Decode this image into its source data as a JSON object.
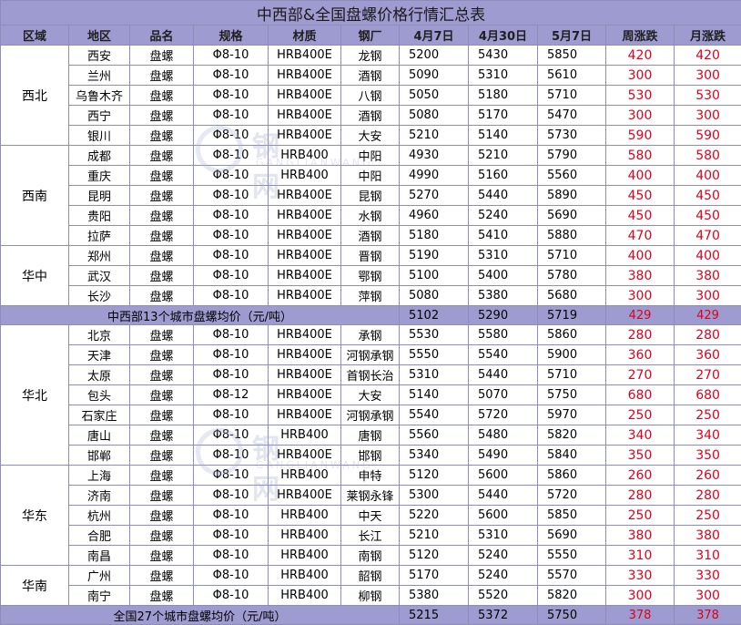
{
  "title": "中西部&全国盘螺价格行情汇总表",
  "headers": [
    "区域",
    "地区",
    "品名",
    "规格",
    "材质",
    "钢厂",
    "4月7日",
    "4月30日",
    "5月7日",
    "周涨跌",
    "月涨跌"
  ],
  "groups": [
    {
      "region": "西北",
      "rows": [
        [
          "西安",
          "盘螺",
          "Φ8-10",
          "HRB400E",
          "龙钢",
          "5200",
          "5430",
          "5850",
          "420",
          "420"
        ],
        [
          "兰州",
          "盘螺",
          "Φ8-10",
          "HRB400E",
          "酒钢",
          "5090",
          "5310",
          "5610",
          "300",
          "300"
        ],
        [
          "乌鲁木齐",
          "盘螺",
          "Φ8-10",
          "HRB400E",
          "八钢",
          "5050",
          "5180",
          "5710",
          "530",
          "530"
        ],
        [
          "西宁",
          "盘螺",
          "Φ8-10",
          "HRB400E",
          "酒钢",
          "5080",
          "5170",
          "5470",
          "300",
          "300"
        ],
        [
          "银川",
          "盘螺",
          "Φ8-10",
          "HRB400E",
          "大安",
          "5210",
          "5140",
          "5730",
          "590",
          "590"
        ]
      ]
    },
    {
      "region": "西南",
      "rows": [
        [
          "成都",
          "盘螺",
          "Φ8-10",
          "HRB400",
          "中阳",
          "4930",
          "5210",
          "5790",
          "580",
          "580"
        ],
        [
          "重庆",
          "盘螺",
          "Φ8-10",
          "HRB400",
          "中阳",
          "4990",
          "5160",
          "5560",
          "400",
          "400"
        ],
        [
          "昆明",
          "盘螺",
          "Φ8-10",
          "HRB400E",
          "昆钢",
          "5270",
          "5440",
          "5890",
          "450",
          "450"
        ],
        [
          "贵阳",
          "盘螺",
          "Φ8-10",
          "HRB400E",
          "水钢",
          "4960",
          "5240",
          "5690",
          "450",
          "450"
        ],
        [
          "拉萨",
          "盘螺",
          "Φ8-10",
          "HRB400E",
          "酒钢",
          "5180",
          "5410",
          "5880",
          "470",
          "470"
        ]
      ]
    },
    {
      "region": "华中",
      "rows": [
        [
          "郑州",
          "盘螺",
          "Φ8-10",
          "HRB400E",
          "晋钢",
          "5190",
          "5310",
          "5710",
          "400",
          "400"
        ],
        [
          "武汉",
          "盘螺",
          "Φ8-10",
          "HRB400E",
          "鄂钢",
          "5100",
          "5400",
          "5780",
          "380",
          "380"
        ],
        [
          "长沙",
          "盘螺",
          "Φ8-10",
          "HRB400E",
          "萍钢",
          "5080",
          "5380",
          "5680",
          "300",
          "300"
        ]
      ]
    }
  ],
  "avg1": {
    "label": "中西部13个城市盘螺均价（元/吨）",
    "v1": "5102",
    "v2": "5290",
    "v3": "5719",
    "w": "429",
    "m": "429"
  },
  "groups2": [
    {
      "region": "华北",
      "rows": [
        [
          "北京",
          "盘螺",
          "Φ8-10",
          "HRB400E",
          "承钢",
          "5530",
          "5580",
          "5860",
          "280",
          "280"
        ],
        [
          "天津",
          "盘螺",
          "Φ8-10",
          "HRB400E",
          "河钢承钢",
          "5550",
          "5540",
          "5900",
          "360",
          "360"
        ],
        [
          "太原",
          "盘螺",
          "Φ8-10",
          "HRB400E",
          "首钢长治",
          "5310",
          "5440",
          "5710",
          "270",
          "270"
        ],
        [
          "包头",
          "盘螺",
          "Φ8-12",
          "HRB400E",
          "大安",
          "5140",
          "5070",
          "5750",
          "680",
          "680"
        ],
        [
          "石家庄",
          "盘螺",
          "Φ8-10",
          "HRB400E",
          "河钢承钢",
          "5540",
          "5720",
          "5970",
          "250",
          "250"
        ],
        [
          "唐山",
          "盘螺",
          "Φ8-10",
          "HRB400",
          "唐钢",
          "5560",
          "5480",
          "5820",
          "340",
          "340"
        ],
        [
          "邯郸",
          "盘螺",
          "Φ8-10",
          "HRB400E",
          "邯钢",
          "5340",
          "5490",
          "5840",
          "350",
          "350"
        ]
      ]
    },
    {
      "region": "华东",
      "rows": [
        [
          "上海",
          "盘螺",
          "Φ8-10",
          "HRB400",
          "申特",
          "5120",
          "5600",
          "5860",
          "260",
          "260"
        ],
        [
          "济南",
          "盘螺",
          "Φ8-10",
          "HRB400E",
          "莱钢永锋",
          "5300",
          "5440",
          "5720",
          "280",
          "280"
        ],
        [
          "杭州",
          "盘螺",
          "Φ8-10",
          "HRB400",
          "中天",
          "5220",
          "5600",
          "5850",
          "250",
          "250"
        ],
        [
          "合肥",
          "盘螺",
          "Φ8-10",
          "HRB400",
          "长江",
          "5210",
          "5310",
          "5690",
          "380",
          "380"
        ],
        [
          "南昌",
          "盘螺",
          "Φ8-10",
          "HRB400",
          "南钢",
          "5120",
          "5240",
          "5550",
          "310",
          "310"
        ]
      ]
    },
    {
      "region": "华南",
      "rows": [
        [
          "广州",
          "盘螺",
          "Φ8-10",
          "HRB400",
          "韶钢",
          "5170",
          "5240",
          "5570",
          "330",
          "330"
        ],
        [
          "南宁",
          "盘螺",
          "Φ8-10",
          "HRB400",
          "柳钢",
          "5380",
          "5520",
          "5820",
          "300",
          "300"
        ]
      ]
    }
  ],
  "avg2": {
    "label": "全国27个城市盘螺均价（元/吨）",
    "v1": "5215",
    "v2": "5372",
    "v3": "5750",
    "w": "378",
    "m": "378"
  },
  "watermark": {
    "chars": "钢 网",
    "sub": "GANGLIANWANG"
  },
  "colors": {
    "header_bg": "#9d9bcf",
    "border": "#8d8db8",
    "change_red": "#e0001b"
  }
}
